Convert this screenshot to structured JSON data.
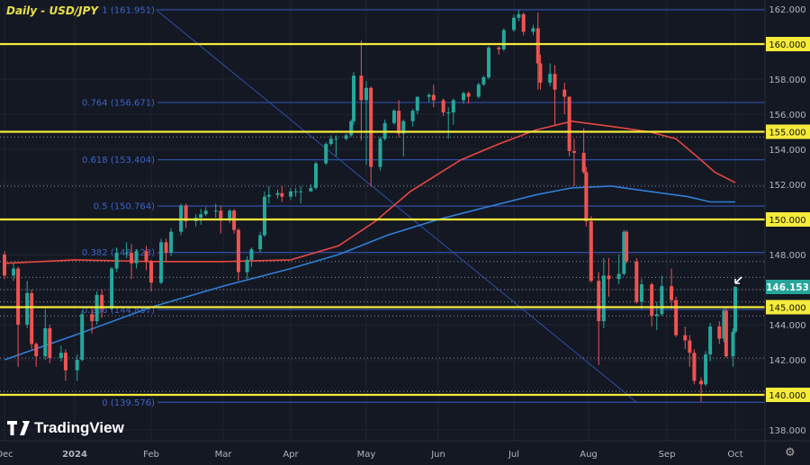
{
  "title": "Daily - USD/JPY",
  "brand": "TradingView",
  "colors": {
    "bg": "#141823",
    "up": "#26a69a",
    "down": "#ef5350",
    "yellow": "#f5eb3b",
    "fib": "#2f4fa8",
    "ma_red": "#e8473f",
    "ma_blue": "#2f7fd8",
    "last_price": "#26a69a"
  },
  "chart_data": {
    "type": "candlestick",
    "ylim": [
      137,
      162.5
    ],
    "yticks": [
      162,
      160,
      158,
      156,
      155,
      154,
      152,
      150,
      148,
      146.153,
      145,
      144,
      142,
      140,
      138
    ],
    "ytick_labels": [
      "162.000",
      "160.000",
      "158.000",
      "156.000",
      "155.000",
      "154.000",
      "152.000",
      "150.000",
      "148.000",
      "146.153",
      "145.000",
      "144.000",
      "142.000",
      "140.000",
      "138.000"
    ],
    "xtick_labels": [
      [
        "2023-12-01",
        "Dec"
      ],
      [
        "2024-01-01",
        "2024"
      ],
      [
        "2024-02-01",
        "Feb"
      ],
      [
        "2024-03-01",
        "Mar"
      ],
      [
        "2024-04-01",
        "Apr"
      ],
      [
        "2024-05-01",
        "May"
      ],
      [
        "2024-06-01",
        "Jun"
      ],
      [
        "2024-07-01",
        "Jul"
      ],
      [
        "2024-08-01",
        "Aug"
      ],
      [
        "2024-09-01",
        "Sep"
      ],
      [
        "2024-10-01",
        "Oct"
      ]
    ],
    "last_price": "146.153",
    "horizontal_levels": [
      160,
      155,
      150,
      145,
      140
    ],
    "fib_levels": [
      {
        "ratio": "1",
        "price": "161.951"
      },
      {
        "ratio": "0.764",
        "price": "156.671"
      },
      {
        "ratio": "0.618",
        "price": "153.404"
      },
      {
        "ratio": "0.5",
        "price": "150.764"
      },
      {
        "ratio": "0.382",
        "price": "148.123"
      },
      {
        "ratio": "0.236",
        "price": "144.857"
      },
      {
        "ratio": "0",
        "price": "139.576"
      }
    ],
    "dotted_levels": [
      154.7,
      151.9,
      147.6,
      146.7,
      146.0,
      145.3,
      144.5,
      142.1,
      140.2
    ],
    "candle_fields": [
      "date",
      "open",
      "high",
      "low",
      "close"
    ],
    "candles": [
      [
        "2023-12-01",
        148.0,
        148.2,
        146.6,
        146.8
      ],
      [
        "2023-12-05",
        146.8,
        147.5,
        146.5,
        147.2
      ],
      [
        "2023-12-07",
        147.2,
        147.3,
        141.6,
        144.0
      ],
      [
        "2023-12-11",
        144.0,
        146.5,
        143.8,
        145.8
      ],
      [
        "2023-12-13",
        145.8,
        146.0,
        142.6,
        142.9
      ],
      [
        "2023-12-15",
        142.9,
        143.0,
        141.6,
        142.2
      ],
      [
        "2023-12-19",
        142.2,
        144.9,
        142.0,
        143.8
      ],
      [
        "2023-12-21",
        143.8,
        144.0,
        141.8,
        142.1
      ],
      [
        "2023-12-26",
        142.1,
        142.8,
        141.9,
        142.4
      ],
      [
        "2023-12-28",
        142.4,
        142.6,
        140.8,
        141.4
      ],
      [
        "2024-01-02",
        141.4,
        142.3,
        140.8,
        142.0
      ],
      [
        "2024-01-04",
        142.0,
        144.8,
        141.9,
        144.6
      ],
      [
        "2024-01-08",
        144.6,
        145.0,
        143.5,
        144.2
      ],
      [
        "2024-01-10",
        144.2,
        145.9,
        144.0,
        145.7
      ],
      [
        "2024-01-12",
        145.7,
        146.0,
        144.4,
        144.9
      ],
      [
        "2024-01-16",
        144.9,
        147.3,
        144.8,
        147.2
      ],
      [
        "2024-01-18",
        147.2,
        148.4,
        147.0,
        148.1
      ],
      [
        "2024-01-22",
        148.1,
        148.7,
        147.8,
        148.1
      ],
      [
        "2024-01-24",
        148.1,
        148.6,
        146.6,
        147.5
      ],
      [
        "2024-01-26",
        147.5,
        148.3,
        147.2,
        148.2
      ],
      [
        "2024-01-30",
        148.2,
        148.5,
        147.1,
        147.6
      ],
      [
        "2024-02-01",
        147.6,
        147.7,
        145.9,
        146.4
      ],
      [
        "2024-02-05",
        146.4,
        148.9,
        146.3,
        148.7
      ],
      [
        "2024-02-07",
        148.7,
        148.9,
        147.6,
        148.1
      ],
      [
        "2024-02-09",
        148.1,
        149.5,
        147.9,
        149.3
      ],
      [
        "2024-02-13",
        149.3,
        150.9,
        149.1,
        150.8
      ],
      [
        "2024-02-15",
        150.8,
        150.9,
        149.5,
        149.9
      ],
      [
        "2024-02-19",
        149.9,
        150.3,
        149.6,
        150.1
      ],
      [
        "2024-02-21",
        150.1,
        150.6,
        149.7,
        150.3
      ],
      [
        "2024-02-23",
        150.3,
        150.7,
        150.2,
        150.5
      ],
      [
        "2024-02-27",
        150.5,
        150.9,
        150.1,
        150.5
      ],
      [
        "2024-02-29",
        150.5,
        150.8,
        149.2,
        150.0
      ],
      [
        "2024-03-04",
        150.0,
        150.6,
        149.8,
        150.5
      ],
      [
        "2024-03-06",
        150.5,
        150.6,
        149.2,
        149.4
      ],
      [
        "2024-03-08",
        149.4,
        149.5,
        146.5,
        147.0
      ],
      [
        "2024-03-12",
        147.0,
        147.9,
        146.6,
        147.7
      ],
      [
        "2024-03-14",
        147.7,
        148.4,
        147.3,
        148.3
      ],
      [
        "2024-03-18",
        148.3,
        149.3,
        148.1,
        149.1
      ],
      [
        "2024-03-20",
        149.1,
        151.6,
        149.0,
        151.3
      ],
      [
        "2024-03-22",
        151.3,
        151.9,
        150.9,
        151.4
      ],
      [
        "2024-03-26",
        151.4,
        151.7,
        151.2,
        151.5
      ],
      [
        "2024-03-28",
        151.5,
        151.9,
        151.0,
        151.3
      ],
      [
        "2024-04-01",
        151.3,
        151.8,
        151.1,
        151.6
      ],
      [
        "2024-04-03",
        151.6,
        151.8,
        151.3,
        151.6
      ],
      [
        "2024-04-05",
        151.6,
        151.9,
        150.9,
        151.6
      ],
      [
        "2024-04-09",
        151.6,
        152.0,
        151.6,
        151.8
      ],
      [
        "2024-04-11",
        151.8,
        153.3,
        151.7,
        153.2
      ],
      [
        "2024-04-15",
        153.2,
        154.4,
        153.1,
        154.3
      ],
      [
        "2024-04-17",
        154.3,
        154.8,
        154.2,
        154.6
      ],
      [
        "2024-04-19",
        154.6,
        154.8,
        153.6,
        154.6
      ],
      [
        "2024-04-23",
        154.6,
        154.9,
        154.5,
        154.8
      ],
      [
        "2024-04-25",
        154.8,
        155.7,
        154.7,
        155.6
      ],
      [
        "2024-04-26",
        155.6,
        158.4,
        155.4,
        158.2
      ],
      [
        "2024-04-29",
        158.2,
        160.2,
        154.5,
        156.8
      ],
      [
        "2024-05-01",
        156.8,
        157.9,
        153.1,
        157.5
      ],
      [
        "2024-05-03",
        157.5,
        157.6,
        151.9,
        153.0
      ],
      [
        "2024-05-07",
        153.0,
        154.7,
        152.8,
        154.6
      ],
      [
        "2024-05-09",
        154.6,
        155.7,
        154.5,
        155.5
      ],
      [
        "2024-05-13",
        155.5,
        156.3,
        155.4,
        156.2
      ],
      [
        "2024-05-15",
        156.2,
        156.8,
        154.7,
        154.9
      ],
      [
        "2024-05-17",
        154.9,
        155.7,
        153.6,
        155.6
      ],
      [
        "2024-05-21",
        155.6,
        156.3,
        155.3,
        156.2
      ],
      [
        "2024-05-23",
        156.2,
        157.0,
        156.0,
        157.0
      ],
      [
        "2024-05-28",
        157.0,
        157.2,
        156.7,
        157.1
      ],
      [
        "2024-05-30",
        157.1,
        157.7,
        156.4,
        156.8
      ],
      [
        "2024-06-03",
        156.8,
        156.9,
        155.9,
        156.1
      ],
      [
        "2024-06-05",
        156.1,
        156.4,
        154.6,
        156.1
      ],
      [
        "2024-06-07",
        156.1,
        156.9,
        155.4,
        156.8
      ],
      [
        "2024-06-11",
        156.8,
        157.3,
        156.6,
        157.2
      ],
      [
        "2024-06-13",
        157.2,
        157.3,
        156.6,
        157.0
      ],
      [
        "2024-06-17",
        157.0,
        157.8,
        156.9,
        157.7
      ],
      [
        "2024-06-19",
        157.7,
        158.2,
        157.6,
        158.1
      ],
      [
        "2024-06-21",
        158.1,
        159.9,
        158.0,
        159.8
      ],
      [
        "2024-06-25",
        159.8,
        159.9,
        159.4,
        159.7
      ],
      [
        "2024-06-27",
        159.7,
        160.9,
        159.6,
        160.8
      ],
      [
        "2024-07-01",
        160.8,
        161.7,
        160.7,
        161.5
      ],
      [
        "2024-07-03",
        161.5,
        161.95,
        161.3,
        161.7
      ],
      [
        "2024-07-05",
        161.7,
        161.8,
        160.5,
        160.7
      ],
      [
        "2024-07-09",
        160.7,
        161.1,
        160.5,
        160.9
      ],
      [
        "2024-07-11",
        160.9,
        161.8,
        157.4,
        158.9
      ],
      [
        "2024-07-12",
        158.9,
        159.4,
        157.4,
        157.8
      ],
      [
        "2024-07-16",
        157.8,
        158.9,
        157.6,
        158.3
      ],
      [
        "2024-07-18",
        158.3,
        158.8,
        155.4,
        157.4
      ],
      [
        "2024-07-22",
        157.4,
        157.8,
        156.0,
        157.0
      ],
      [
        "2024-07-24",
        157.0,
        157.0,
        153.6,
        153.9
      ],
      [
        "2024-07-26",
        153.9,
        154.6,
        151.9,
        153.8
      ],
      [
        "2024-07-30",
        153.8,
        155.2,
        152.6,
        152.7
      ],
      [
        "2024-07-31",
        152.7,
        153.0,
        149.6,
        149.9
      ],
      [
        "2024-08-02",
        149.9,
        150.2,
        146.4,
        146.5
      ],
      [
        "2024-08-05",
        146.5,
        147.0,
        141.7,
        144.2
      ],
      [
        "2024-08-07",
        144.2,
        147.8,
        143.8,
        146.8
      ],
      [
        "2024-08-09",
        146.8,
        147.8,
        145.6,
        146.6
      ],
      [
        "2024-08-13",
        146.6,
        148.0,
        146.3,
        146.9
      ],
      [
        "2024-08-15",
        146.9,
        149.4,
        146.8,
        149.3
      ],
      [
        "2024-08-16",
        149.3,
        149.4,
        147.5,
        147.6
      ],
      [
        "2024-08-20",
        147.6,
        147.8,
        145.2,
        145.3
      ],
      [
        "2024-08-22",
        145.3,
        146.6,
        144.9,
        146.3
      ],
      [
        "2024-08-26",
        146.3,
        146.4,
        143.9,
        144.5
      ],
      [
        "2024-08-28",
        144.5,
        145.3,
        143.7,
        144.6
      ],
      [
        "2024-08-30",
        144.6,
        146.8,
        144.5,
        146.2
      ],
      [
        "2024-09-03",
        146.2,
        147.2,
        144.9,
        145.4
      ],
      [
        "2024-09-05",
        145.4,
        145.6,
        143.3,
        143.4
      ],
      [
        "2024-09-09",
        143.4,
        143.9,
        142.6,
        143.1
      ],
      [
        "2024-09-11",
        143.1,
        143.4,
        141.6,
        142.4
      ],
      [
        "2024-09-13",
        142.4,
        142.6,
        140.6,
        140.8
      ],
      [
        "2024-09-16",
        140.8,
        141.0,
        139.6,
        140.6
      ],
      [
        "2024-09-18",
        140.6,
        142.5,
        140.5,
        142.3
      ],
      [
        "2024-09-20",
        142.3,
        144.1,
        141.9,
        143.9
      ],
      [
        "2024-09-24",
        143.9,
        144.2,
        142.9,
        143.2
      ],
      [
        "2024-09-26",
        143.2,
        145.0,
        143.0,
        144.8
      ],
      [
        "2024-09-27",
        144.8,
        145.0,
        142.1,
        142.2
      ],
      [
        "2024-09-30",
        142.2,
        143.8,
        141.6,
        143.6
      ],
      [
        "2024-10-01",
        143.6,
        146.2,
        143.5,
        146.153
      ]
    ],
    "moving_averages": [
      {
        "color": "red",
        "points": [
          [
            "2023-12-01",
            147.5
          ],
          [
            "2024-01-01",
            147.7
          ],
          [
            "2024-02-01",
            147.6
          ],
          [
            "2024-03-01",
            147.6
          ],
          [
            "2024-04-01",
            147.7
          ],
          [
            "2024-04-20",
            148.5
          ],
          [
            "2024-05-05",
            149.9
          ],
          [
            "2024-05-20",
            151.6
          ],
          [
            "2024-06-10",
            153.4
          ],
          [
            "2024-06-25",
            154.3
          ],
          [
            "2024-07-10",
            155.1
          ],
          [
            "2024-07-25",
            155.6
          ],
          [
            "2024-08-10",
            155.3
          ],
          [
            "2024-08-25",
            155.0
          ],
          [
            "2024-09-05",
            154.6
          ],
          [
            "2024-09-15",
            153.5
          ],
          [
            "2024-09-22",
            152.7
          ],
          [
            "2024-10-01",
            152.1
          ]
        ]
      },
      {
        "color": "blue",
        "points": [
          [
            "2023-12-01",
            142.0
          ],
          [
            "2024-01-01",
            143.4
          ],
          [
            "2024-02-01",
            145.0
          ],
          [
            "2024-03-01",
            146.2
          ],
          [
            "2024-04-01",
            147.2
          ],
          [
            "2024-04-20",
            148.0
          ],
          [
            "2024-05-10",
            149.1
          ],
          [
            "2024-06-01",
            150.0
          ],
          [
            "2024-06-20",
            150.7
          ],
          [
            "2024-07-10",
            151.4
          ],
          [
            "2024-07-25",
            151.8
          ],
          [
            "2024-08-10",
            151.9
          ],
          [
            "2024-08-25",
            151.6
          ],
          [
            "2024-09-10",
            151.3
          ],
          [
            "2024-09-20",
            151.0
          ],
          [
            "2024-10-01",
            151.0
          ]
        ]
      }
    ],
    "trendline": [
      [
        "2024-02-03",
        161.951
      ],
      [
        "2024-08-20",
        139.576
      ]
    ]
  }
}
